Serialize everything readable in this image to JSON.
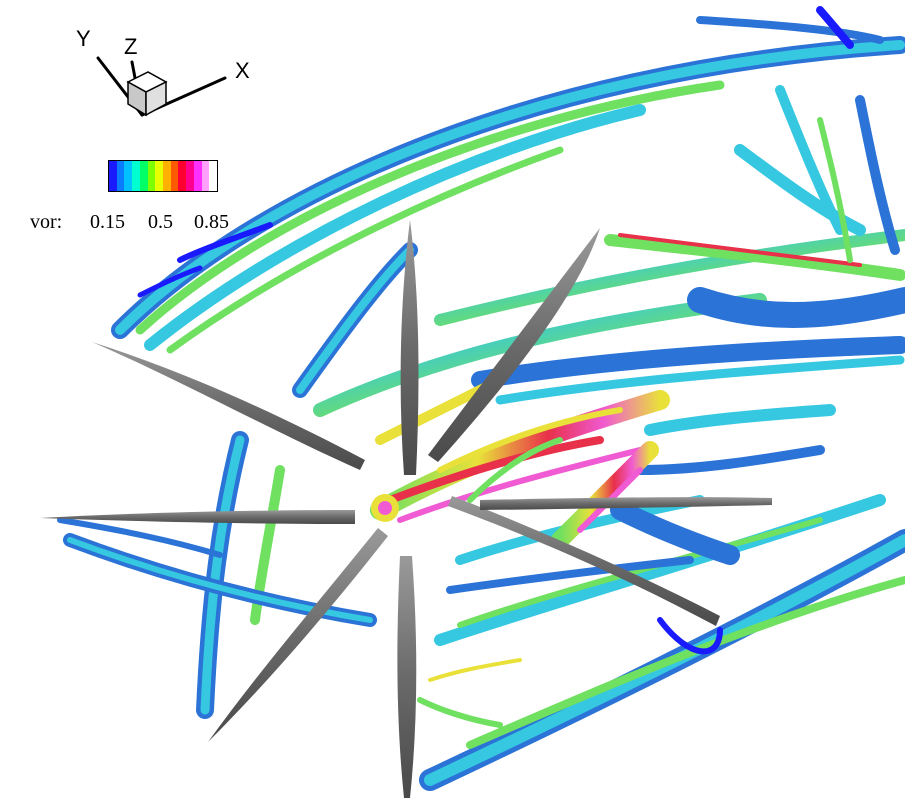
{
  "axis_triad": {
    "x_label": "X",
    "y_label": "Y",
    "z_label": "Z"
  },
  "legend": {
    "variable": "vor:",
    "ticks": [
      "0.15",
      "0.5",
      "0.85"
    ],
    "colors": [
      "#1a1aff",
      "#0a7cff",
      "#00c0ff",
      "#00ffd0",
      "#00ff66",
      "#7dff00",
      "#e8ff00",
      "#ffb000",
      "#ff5a00",
      "#ff0030",
      "#ff0090",
      "#ff30ff",
      "#ffa0ff",
      "#ffffff"
    ]
  },
  "scene": {
    "blade_color": "#6e6e6e",
    "palette": {
      "blue": "#2b73d6",
      "cyan": "#35c8e0",
      "green": "#6fe060",
      "yellow": "#e9e13a",
      "red": "#e8304a",
      "magenta": "#f05ad2"
    }
  }
}
